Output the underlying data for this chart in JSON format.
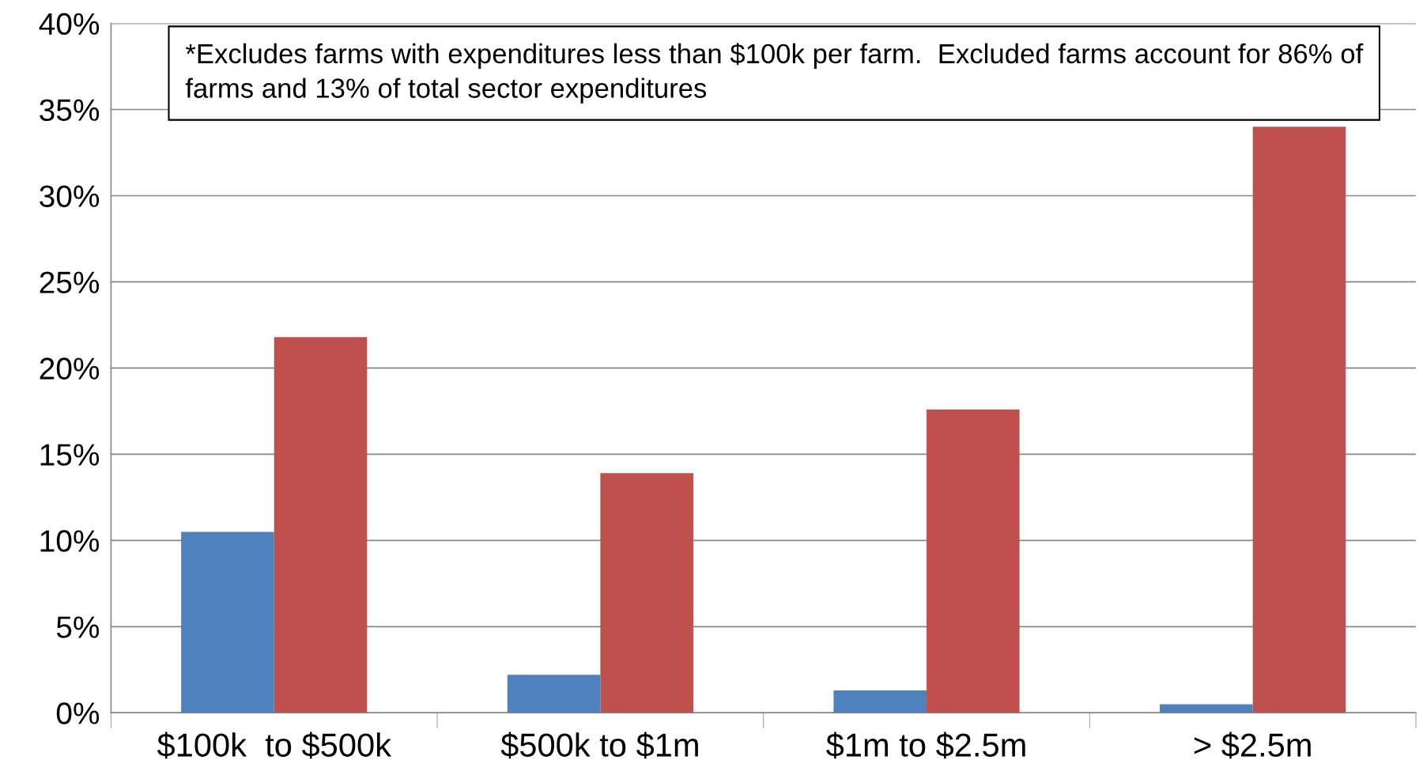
{
  "chart_data": {
    "type": "bar",
    "categories": [
      "$100k  to $500k",
      "$500k to $1m",
      "$1m to $2.5m",
      "> $2.5m"
    ],
    "series": [
      {
        "color": "#4f81bd",
        "values": [
          10.5,
          2.2,
          1.3,
          0.5
        ]
      },
      {
        "color": "#c0504d",
        "values": [
          21.8,
          13.9,
          17.6,
          34.0
        ]
      }
    ],
    "ylim": [
      0,
      40
    ],
    "yticks": [
      {
        "value": 0,
        "label": "0%"
      },
      {
        "value": 5,
        "label": "5%"
      },
      {
        "value": 10,
        "label": "10%"
      },
      {
        "value": 15,
        "label": "15%"
      },
      {
        "value": 20,
        "label": "20%"
      },
      {
        "value": 25,
        "label": "25%"
      },
      {
        "value": 30,
        "label": "30%"
      },
      {
        "value": 35,
        "label": "35%"
      },
      {
        "value": 40,
        "label": "40%"
      }
    ],
    "grid": "y",
    "annotations": [
      "*Excludes farms with expenditures less than $100k per farm.  Excluded farms account for 86% of farms and 13% of total sector expenditures"
    ]
  }
}
